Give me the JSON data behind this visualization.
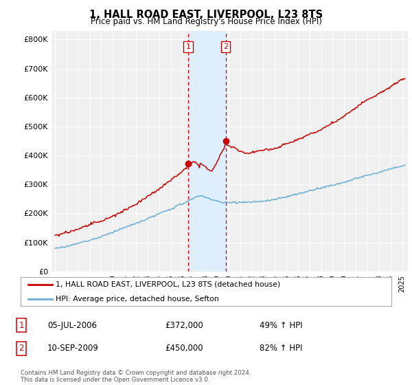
{
  "title": "1, HALL ROAD EAST, LIVERPOOL, L23 8TS",
  "subtitle": "Price paid vs. HM Land Registry's House Price Index (HPI)",
  "ylabel_ticks": [
    "£0",
    "£100K",
    "£200K",
    "£300K",
    "£400K",
    "£500K",
    "£600K",
    "£700K",
    "£800K"
  ],
  "ylim": [
    0,
    830000
  ],
  "xlim_start": 1994.7,
  "xlim_end": 2025.5,
  "hpi_color": "#6baed6",
  "price_color": "#cc0000",
  "shade_color": "#ddeeff",
  "legend_label_price": "1, HALL ROAD EAST, LIVERPOOL, L23 8TS (detached house)",
  "legend_label_hpi": "HPI: Average price, detached house, Sefton",
  "transaction1_label": "1",
  "transaction1_date": "05-JUL-2006",
  "transaction1_price": "£372,000",
  "transaction1_hpi": "49% ↑ HPI",
  "transaction2_label": "2",
  "transaction2_date": "10-SEP-2009",
  "transaction2_price": "£450,000",
  "transaction2_hpi": "82% ↑ HPI",
  "footnote": "Contains HM Land Registry data © Crown copyright and database right 2024.\nThis data is licensed under the Open Government Licence v3.0.",
  "background_color": "#ffffff",
  "plot_bg_color": "#f0f0f0",
  "grid_color": "#ffffff",
  "shade_x1": 2006.5,
  "shade_x2": 2009.75,
  "tx1_x": 2006.5,
  "tx1_y": 372000,
  "tx2_x": 2009.75,
  "tx2_y": 450000
}
